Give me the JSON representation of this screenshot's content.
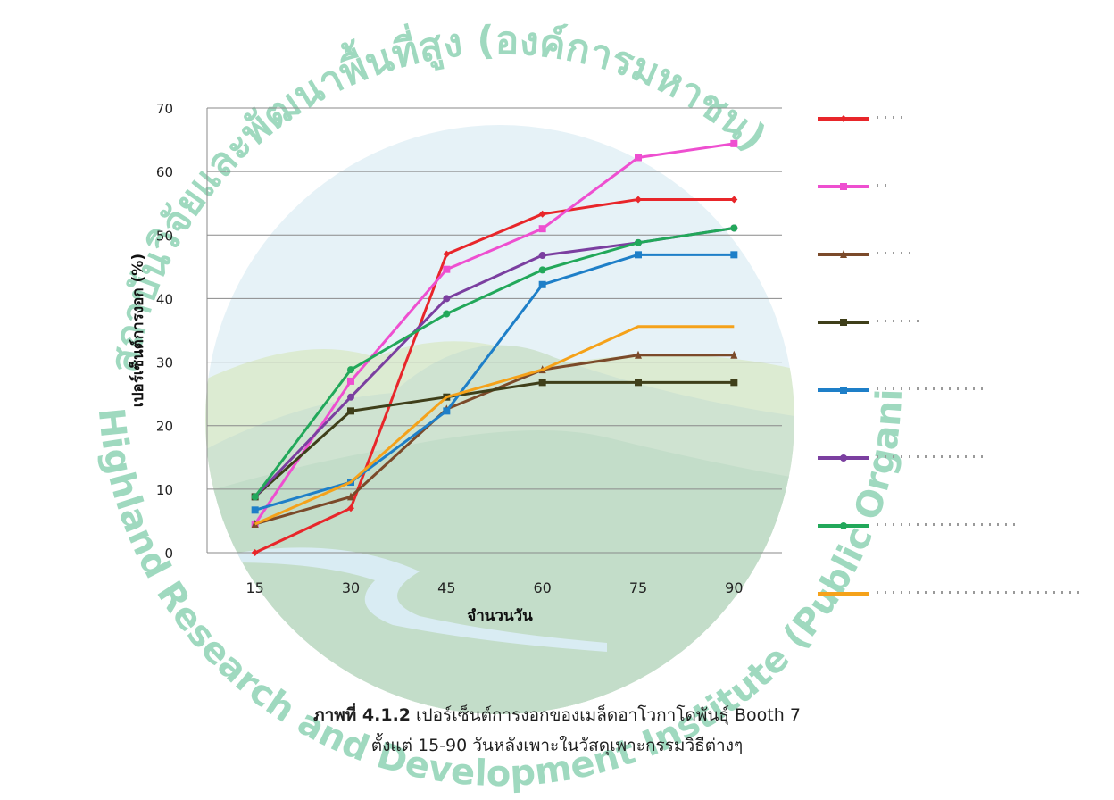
{
  "watermark": {
    "thai_text": "สถาบันวิจัยและพัฒนาพื้นที่สูง (องค์การมหาชน)",
    "english_text": "Highland Research and Development Institute (Public Organization)",
    "color": "#8fd3b5"
  },
  "chart_data": {
    "type": "line",
    "title": "",
    "xlabel": "จำนวนวัน",
    "ylabel": "เปอร์เซ็นต์การงอก (%)",
    "x": [
      15,
      30,
      45,
      60,
      75,
      90
    ],
    "ylim": [
      0,
      70
    ],
    "yticks": [
      "0",
      "10",
      "20",
      "30",
      "40",
      "50",
      "60",
      "70"
    ],
    "xticks": [
      "15",
      "30",
      "45",
      "60",
      "75",
      "90"
    ],
    "grid": true,
    "legend_position": "right",
    "series": [
      {
        "values": [
          0,
          7,
          47,
          53.3,
          55.6,
          55.6
        ],
        "color": "#e8262a",
        "marker": "diamond"
      },
      {
        "values": [
          4.5,
          27,
          44.6,
          51,
          62.2,
          64.4
        ],
        "color": "#ee4fd0",
        "marker": "square"
      },
      {
        "values": [
          4.5,
          8.8,
          22.6,
          28.8,
          31.1,
          31.1
        ],
        "color": "#7b4a2a",
        "marker": "triangle"
      },
      {
        "values": [
          8.8,
          22.3,
          24.5,
          26.8,
          26.8,
          26.8
        ],
        "color": "#3f3f1a",
        "marker": "square"
      },
      {
        "values": [
          6.7,
          11.1,
          22.3,
          42.2,
          46.9,
          46.9
        ],
        "color": "#1e7fc8",
        "marker": "square"
      },
      {
        "values": [
          8.8,
          24.5,
          40,
          46.8,
          48.8,
          51.1
        ],
        "color": "#7b3fa0",
        "marker": "circle"
      },
      {
        "values": [
          8.8,
          28.8,
          37.6,
          44.5,
          48.8,
          51.1
        ],
        "color": "#22a85a",
        "marker": "circle"
      },
      {
        "values": [
          4.5,
          11.1,
          24.5,
          28.8,
          35.6,
          35.6
        ],
        "color": "#f5a21a",
        "marker": "none"
      }
    ]
  },
  "caption": {
    "label": "ภาพที่ 4.1.2",
    "text": " เปอร์เซ็นต์การงอกของเมล็ดอาโวกาโดพันธุ์ Booth 7",
    "line2": "ตั้งแต่ 15-90 วันหลังเพาะในวัสดุเพาะกรรมวิธีต่างๆ"
  }
}
